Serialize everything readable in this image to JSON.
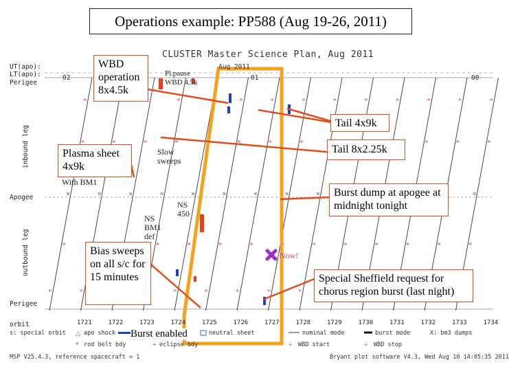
{
  "slide_title": "Operations example: PP588 (Aug 19-26, 2011)",
  "plot": {
    "title": "CLUSTER Master Science Plan, Aug 2011",
    "ut_label": "UT(apo):",
    "lt_label": "LT(apo):",
    "perigee_top": "Perigee",
    "apogee": "Apogee",
    "perigee_bottom": "Perigee",
    "inbound": "inbound leg",
    "outbound": "outbound leg",
    "month_mark": "Aug 2011",
    "lt_hours": [
      "02",
      "01",
      "00"
    ],
    "orbit_label": "orbit",
    "orbits": [
      "1721",
      "1722",
      "1723",
      "1724",
      "1725",
      "1726",
      "1727",
      "1728",
      "1729",
      "1730",
      "1731",
      "1732",
      "1733",
      "1734"
    ]
  },
  "annotations": {
    "wbd_operation": "WBD operation 8x4.5k",
    "pl_pause": "Pl.pause WBD 4.5k",
    "tail_4x9k": "Tail 4x9k",
    "tail_8x2k": "Tail 8x2.25k",
    "plasma_sheet": "Plasma sheet 4x9k",
    "with_bm1": "With BM1",
    "slow_sweeps": "Slow sweeps",
    "burst_dump": "Burst dump at apogee at midnight tonight",
    "ns_450": "NS 450",
    "ns_bm1": "NS BM1 def",
    "bias_sweeps": "Bias sweeps on all s/c for 15 minutes",
    "now": "Now!",
    "sheffield": "Special Sheffield request for chorus region burst (last night)",
    "burst_enabled": "Burst enabled"
  },
  "legend": {
    "row1": [
      "s: special orbit",
      "apo shock",
      "neutral sheet",
      "nominal mode",
      "burst mode",
      "X: bm3 dumps"
    ],
    "row2": [
      "rod belt bdy",
      "eclipse bdy",
      "WBD start",
      "WBD stop"
    ]
  },
  "footer": {
    "left": "MSP V25.4.3, reference spacecraft = 1",
    "right": "Bryant plot software V4.3, Wed Aug 10 14:05:35 2011"
  },
  "colors": {
    "accent": "#e04d1c",
    "highlight_box": "#f5a21c",
    "burst": "#1a3fd4",
    "wbd": "#e8401a",
    "now_marker": "#9b2fc9"
  }
}
